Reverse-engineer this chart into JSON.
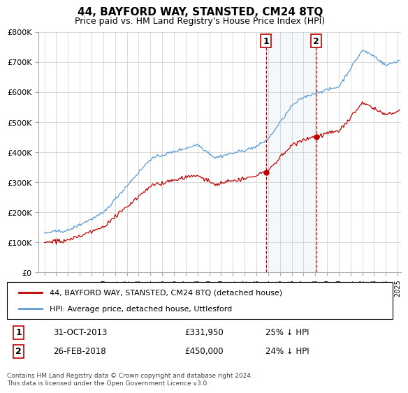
{
  "title": "44, BAYFORD WAY, STANSTED, CM24 8TQ",
  "subtitle": "Price paid vs. HM Land Registry's House Price Index (HPI)",
  "footer": "Contains HM Land Registry data © Crown copyright and database right 2024.\nThis data is licensed under the Open Government Licence v3.0.",
  "legend_line1": "44, BAYFORD WAY, STANSTED, CM24 8TQ (detached house)",
  "legend_line2": "HPI: Average price, detached house, Uttlesford",
  "annotation1_label": "1",
  "annotation1_date": "31-OCT-2013",
  "annotation1_price": "£331,950",
  "annotation1_hpi": "25% ↓ HPI",
  "annotation2_label": "2",
  "annotation2_date": "26-FEB-2018",
  "annotation2_price": "£450,000",
  "annotation2_hpi": "24% ↓ HPI",
  "hpi_color": "#5b9bd5",
  "price_color": "#c00000",
  "annotation_box_color": "#c00000",
  "shade_color": "#dce9f5",
  "ylim": [
    0,
    800000
  ],
  "yticks": [
    0,
    100000,
    200000,
    300000,
    400000,
    500000,
    600000,
    700000,
    800000
  ],
  "ytick_labels": [
    "£0",
    "£100K",
    "£200K",
    "£300K",
    "£400K",
    "£500K",
    "£600K",
    "£700K",
    "£800K"
  ],
  "p1_year": 2013.833,
  "p1_price": 331950,
  "p2_year": 2018.083,
  "p2_price": 450000
}
